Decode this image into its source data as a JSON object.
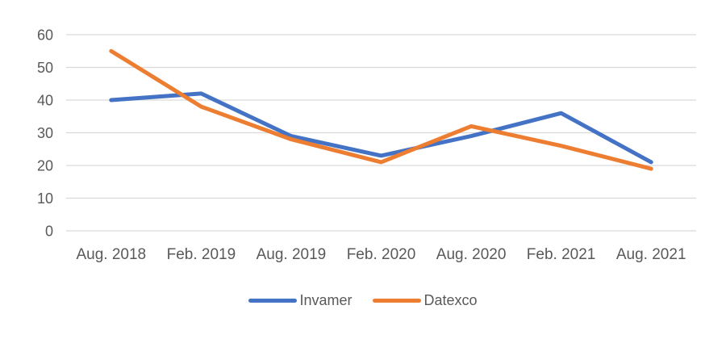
{
  "chart_data": {
    "type": "line",
    "title": "",
    "xlabel": "",
    "ylabel": "",
    "categories": [
      "Aug. 2018",
      "Feb. 2019",
      "Aug. 2019",
      "Feb. 2020",
      "Aug. 2020",
      "Feb. 2021",
      "Aug. 2021"
    ],
    "series": [
      {
        "name": "Invamer",
        "color": "#4472C4",
        "values": [
          40,
          42,
          29,
          23,
          29,
          36,
          21
        ]
      },
      {
        "name": "Datexco",
        "color": "#ED7D31",
        "values": [
          55,
          38,
          28,
          21,
          32,
          26,
          19
        ]
      }
    ],
    "ylim": [
      0,
      60
    ],
    "yticks": [
      0,
      10,
      20,
      30,
      40,
      50,
      60
    ],
    "grid": "horizontal-only",
    "legend_position": "bottom"
  },
  "colors": {
    "background": "#FFFFFF",
    "gridline": "#D9D9D9",
    "axis_label": "#595959",
    "legend_text": "#595959"
  }
}
